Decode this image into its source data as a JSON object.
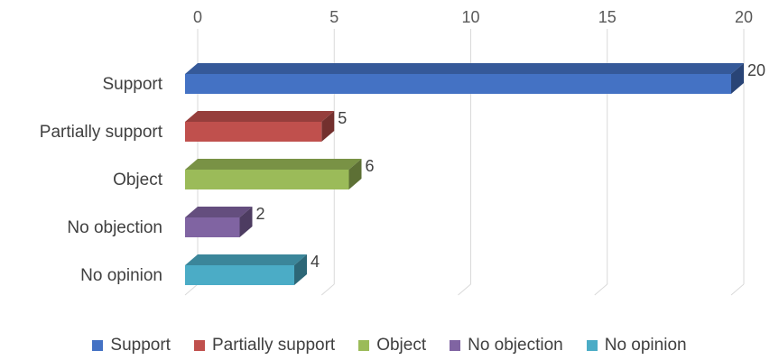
{
  "chart_data": {
    "type": "bar",
    "orientation": "horizontal",
    "style": "3d",
    "categories": [
      "Support",
      "Partially support",
      "Object",
      "No objection",
      "No opinion"
    ],
    "values": [
      20,
      5,
      6,
      2,
      4
    ],
    "colors": [
      "#4472C4",
      "#C0504D",
      "#9BBB59",
      "#8064A2",
      "#4BACC6"
    ],
    "data_labels": [
      "20",
      "5",
      "6",
      "2",
      "4"
    ],
    "xlim": [
      0,
      20
    ],
    "xticks": [
      0,
      5,
      10,
      15,
      20
    ],
    "xtick_labels": [
      "0",
      "5",
      "10",
      "15",
      "20"
    ],
    "x_axis_position": "top",
    "grid": true,
    "legend": {
      "position": "bottom",
      "entries": [
        "Support",
        "Partially support",
        "Object",
        "No objection",
        "No opinion"
      ]
    },
    "title": "",
    "xlabel": "",
    "ylabel": ""
  }
}
